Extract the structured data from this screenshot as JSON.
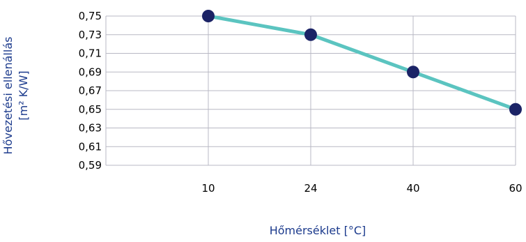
{
  "chart_data": {
    "type": "line",
    "categories": [
      "10",
      "24",
      "40",
      "60"
    ],
    "series": [
      {
        "values": [
          0.75,
          0.73,
          0.69,
          0.65
        ]
      }
    ],
    "ylim": [
      0.59,
      0.75
    ],
    "y_ticks": [
      0.59,
      0.61,
      0.63,
      0.65,
      0.67,
      0.69,
      0.71,
      0.73,
      0.75
    ],
    "y_tick_labels": [
      "0,59",
      "0,61",
      "0,63",
      "0,65",
      "0,67",
      "0,69",
      "0,71",
      "0,73",
      "0,75"
    ],
    "xlabel": "Hőmérséklet [°C]",
    "ylabel_line1": "Hővezetési ellenállás",
    "ylabel_line2": "[m² K/W]",
    "grid": true,
    "colors": {
      "line": "#5BC4C0",
      "marker": "#1B2366",
      "grid": "#B8B8C4",
      "axis_title": "#1B3A8C"
    }
  }
}
